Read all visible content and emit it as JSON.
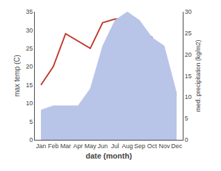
{
  "chart_data": {
    "type": "line",
    "xlabel": "date (month)",
    "ylabel": "max temp (C)",
    "y2label": "med. precipitation (kg/m2)",
    "categories": [
      "Jan",
      "Feb",
      "Mar",
      "Apr",
      "May",
      "Jun",
      "Jul",
      "Aug",
      "Sep",
      "Oct",
      "Nov",
      "Dec"
    ],
    "series": [
      {
        "type": "area",
        "color": "#b8c4e8",
        "axis": "y2",
        "values": [
          7,
          8,
          8,
          8,
          12,
          22,
          28,
          30,
          28,
          24,
          22,
          11
        ]
      },
      {
        "type": "line",
        "color": "#c0392b",
        "values": [
          15,
          20,
          29,
          27,
          25,
          32,
          33,
          33,
          30,
          28,
          13,
          12
        ]
      }
    ],
    "ylim": [
      0,
      35
    ],
    "yticks": [
      0,
      5,
      10,
      15,
      20,
      25,
      30,
      35
    ],
    "y2lim": [
      0,
      30
    ],
    "y2ticks": [
      0,
      5,
      10,
      15,
      20,
      25,
      30
    ],
    "grid": false
  }
}
